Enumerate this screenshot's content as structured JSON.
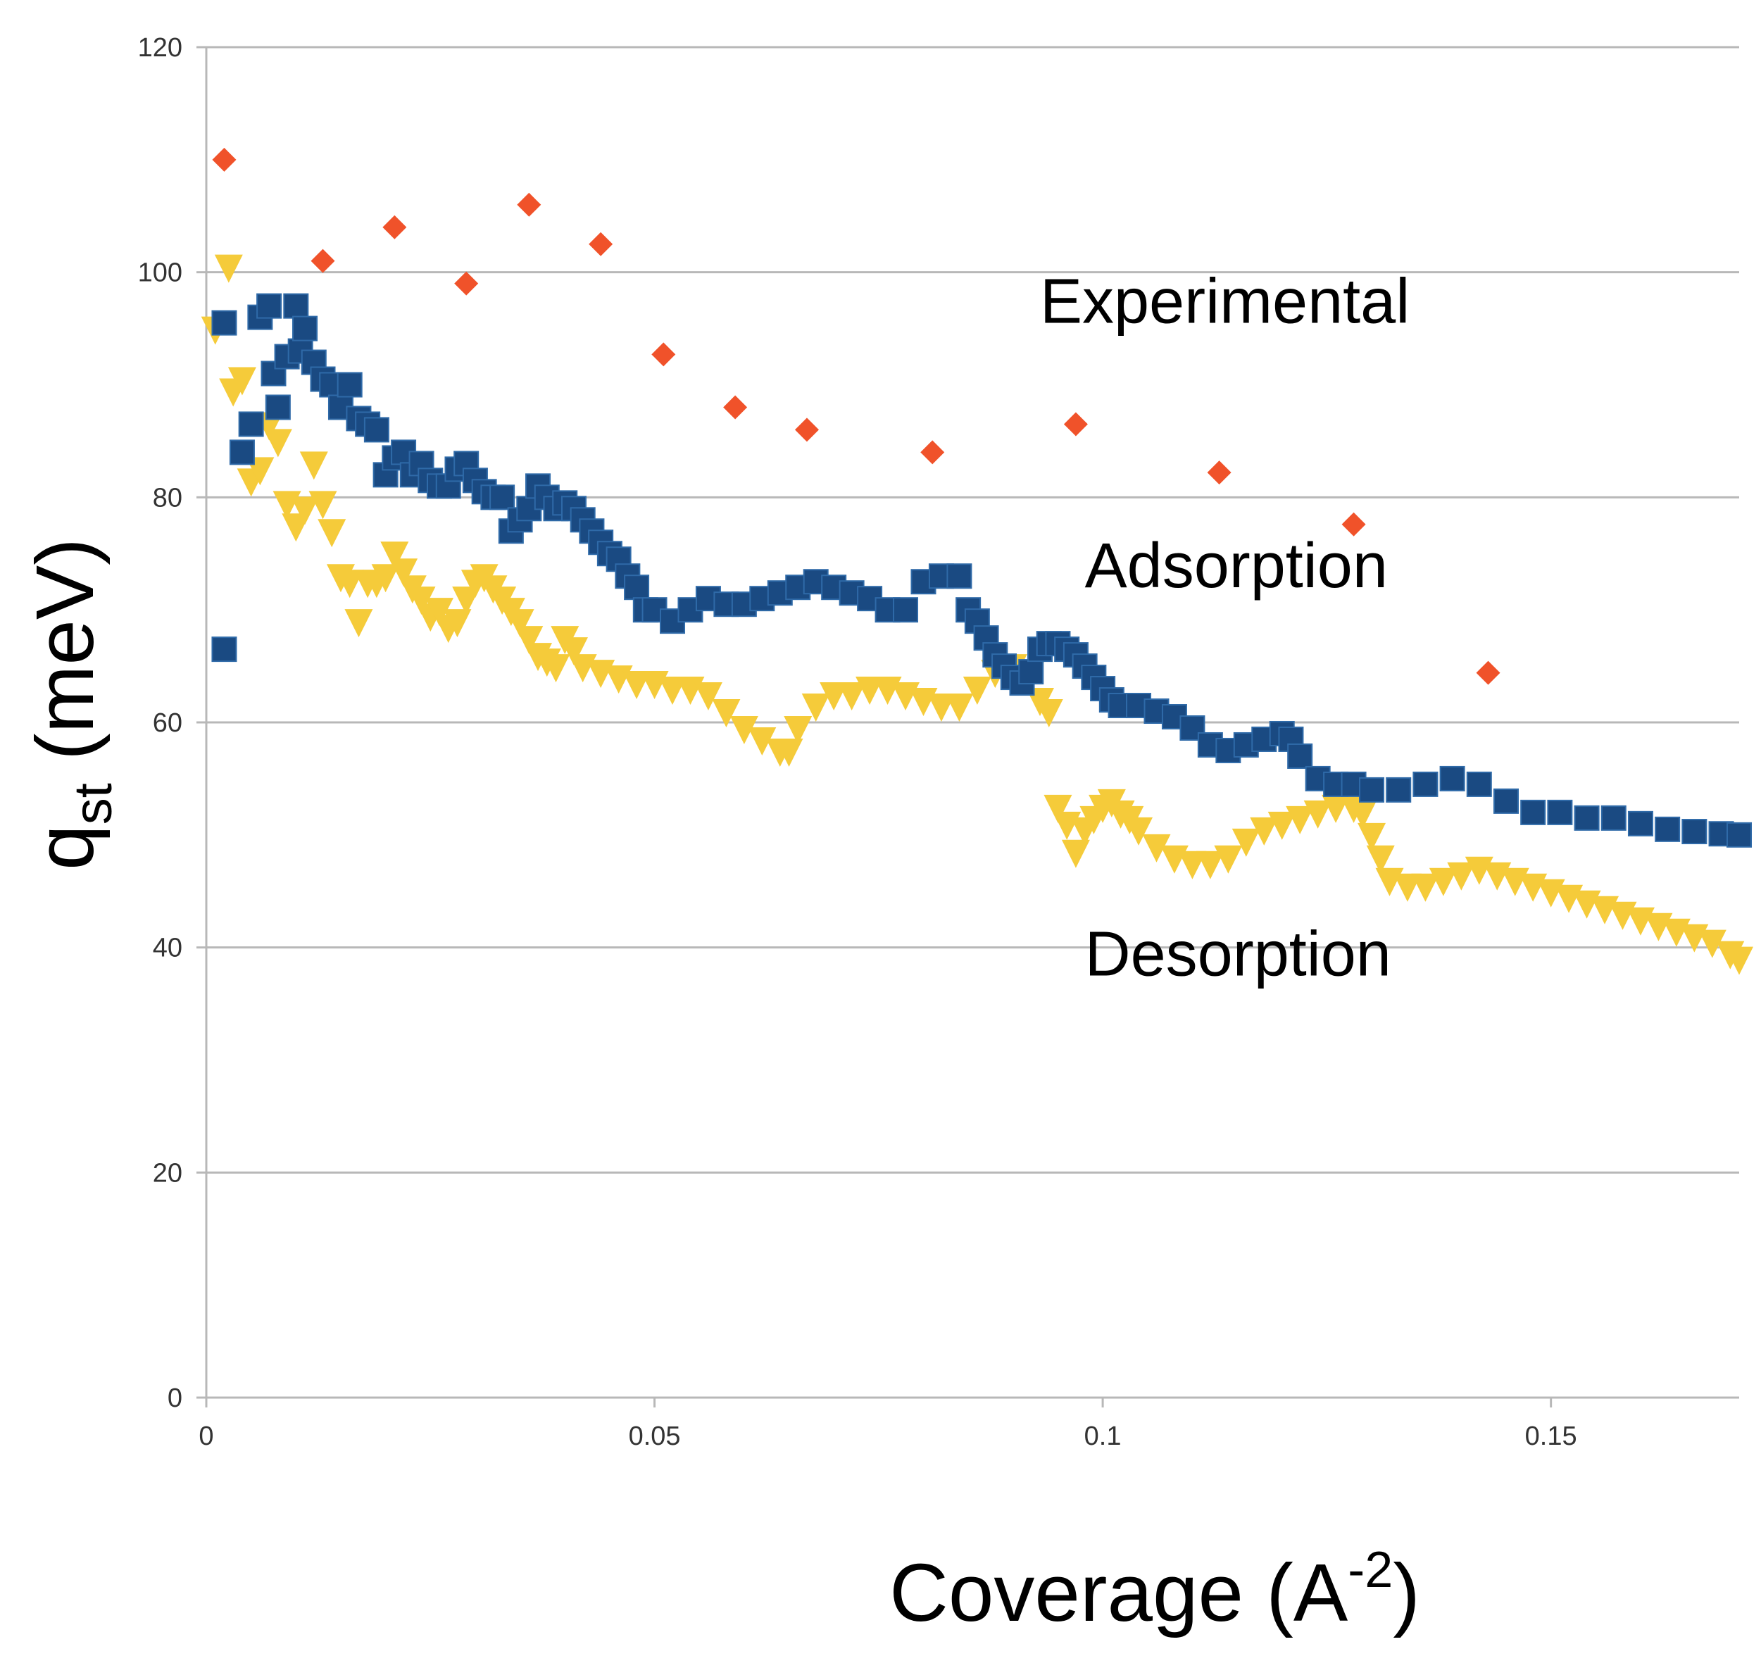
{
  "chart_data": {
    "type": "scatter",
    "title": "",
    "xlabel": "Coverage (A",
    "xlabel_superscript": "-2",
    "xlabel_close": ")",
    "ylabel": "q",
    "ylabel_subscript": "st",
    "ylabel_unit": " (meV)",
    "xlim": [
      0,
      0.171
    ],
    "ylim": [
      0,
      120
    ],
    "x_ticks": [
      {
        "value": 0,
        "label": "0"
      },
      {
        "value": 0.05,
        "label": "0.05"
      },
      {
        "value": 0.1,
        "label": "0.1"
      },
      {
        "value": 0.15,
        "label": "0.15"
      }
    ],
    "y_ticks": [
      {
        "value": 0,
        "label": "0"
      },
      {
        "value": 20,
        "label": "20"
      },
      {
        "value": 40,
        "label": "40"
      },
      {
        "value": 60,
        "label": "60"
      },
      {
        "value": 80,
        "label": "80"
      },
      {
        "value": 100,
        "label": "100"
      },
      {
        "value": 120,
        "label": "120"
      }
    ],
    "grid": "horizontal",
    "series": [
      {
        "name": "Experimental",
        "marker": "diamond",
        "color": "#f0522a",
        "x": [
          0.002,
          0.013,
          0.021,
          0.029,
          0.036,
          0.044,
          0.051,
          0.059,
          0.067,
          0.081,
          0.097,
          0.113,
          0.128,
          0.143
        ],
        "y": [
          110,
          101,
          104,
          99,
          106,
          102.5,
          92.7,
          88,
          86,
          84,
          86.5,
          82.2,
          77.6,
          64.4
        ]
      },
      {
        "name": "Adsorption",
        "marker": "square",
        "color": "#1a4a82",
        "x": [
          0.002,
          0.002,
          0.004,
          0.005,
          0.006,
          0.007,
          0.0075,
          0.008,
          0.009,
          0.01,
          0.0105,
          0.011,
          0.012,
          0.013,
          0.014,
          0.015,
          0.016,
          0.017,
          0.018,
          0.019,
          0.02,
          0.021,
          0.022,
          0.023,
          0.024,
          0.025,
          0.026,
          0.027,
          0.028,
          0.029,
          0.03,
          0.031,
          0.032,
          0.033,
          0.034,
          0.035,
          0.036,
          0.037,
          0.038,
          0.039,
          0.04,
          0.041,
          0.042,
          0.043,
          0.044,
          0.045,
          0.046,
          0.047,
          0.048,
          0.049,
          0.05,
          0.052,
          0.054,
          0.056,
          0.058,
          0.06,
          0.062,
          0.064,
          0.066,
          0.068,
          0.07,
          0.072,
          0.074,
          0.076,
          0.078,
          0.08,
          0.082,
          0.084,
          0.085,
          0.086,
          0.087,
          0.088,
          0.089,
          0.09,
          0.091,
          0.092,
          0.093,
          0.094,
          0.095,
          0.096,
          0.097,
          0.098,
          0.099,
          0.1,
          0.101,
          0.102,
          0.104,
          0.106,
          0.108,
          0.11,
          0.112,
          0.114,
          0.116,
          0.118,
          0.12,
          0.121,
          0.122,
          0.124,
          0.126,
          0.128,
          0.13,
          0.133,
          0.136,
          0.139,
          0.142,
          0.145,
          0.148,
          0.151,
          0.154,
          0.157,
          0.16,
          0.163,
          0.166,
          0.169,
          0.171
        ],
        "y": [
          66.5,
          95.5,
          84,
          86.5,
          96,
          97,
          91,
          88,
          92.5,
          97,
          93,
          95,
          92,
          90.5,
          90,
          88,
          90,
          87,
          86.5,
          86,
          82,
          83.5,
          84,
          82,
          83,
          81.5,
          81,
          81,
          82.5,
          83,
          81.5,
          80.5,
          80,
          80,
          77,
          78,
          79,
          81,
          80,
          79,
          79.5,
          79,
          78,
          77,
          76,
          75,
          74.5,
          73,
          72,
          70,
          70,
          69,
          70,
          71,
          70.5,
          70.5,
          71,
          71.5,
          72,
          72.5,
          72,
          71.5,
          71,
          70,
          70,
          72.5,
          73,
          73,
          70,
          69,
          67.5,
          66,
          65,
          64,
          63.5,
          64.5,
          66.5,
          67,
          67,
          66.5,
          66,
          65,
          64,
          63,
          62,
          61.5,
          61.5,
          61,
          60.5,
          59.5,
          58,
          57.5,
          58,
          58.5,
          59,
          58.5,
          57,
          55,
          54.5,
          54.5,
          54,
          54,
          54.5,
          55,
          54.5,
          53,
          52,
          52,
          51.5,
          51.5,
          51,
          50.5,
          50.3,
          50.1,
          50
        ]
      },
      {
        "name": "Desorption",
        "marker": "triangle-down",
        "color": "#f5cb3a",
        "x": [
          0.001,
          0.0025,
          0.003,
          0.004,
          0.005,
          0.006,
          0.007,
          0.008,
          0.009,
          0.01,
          0.011,
          0.012,
          0.013,
          0.014,
          0.015,
          0.016,
          0.017,
          0.018,
          0.019,
          0.02,
          0.021,
          0.022,
          0.023,
          0.024,
          0.025,
          0.026,
          0.027,
          0.028,
          0.029,
          0.03,
          0.031,
          0.032,
          0.033,
          0.034,
          0.035,
          0.036,
          0.037,
          0.038,
          0.039,
          0.04,
          0.041,
          0.042,
          0.044,
          0.046,
          0.048,
          0.05,
          0.052,
          0.054,
          0.056,
          0.058,
          0.06,
          0.062,
          0.064,
          0.065,
          0.066,
          0.068,
          0.07,
          0.072,
          0.074,
          0.076,
          0.078,
          0.08,
          0.082,
          0.084,
          0.086,
          0.088,
          0.09,
          0.092,
          0.093,
          0.094,
          0.095,
          0.096,
          0.097,
          0.098,
          0.099,
          0.1,
          0.101,
          0.102,
          0.103,
          0.104,
          0.106,
          0.108,
          0.11,
          0.112,
          0.114,
          0.116,
          0.118,
          0.12,
          0.122,
          0.124,
          0.126,
          0.128,
          0.129,
          0.13,
          0.131,
          0.132,
          0.134,
          0.136,
          0.138,
          0.14,
          0.142,
          0.144,
          0.146,
          0.148,
          0.15,
          0.152,
          0.154,
          0.156,
          0.158,
          0.16,
          0.162,
          0.164,
          0.166,
          0.168,
          0.17,
          0.171
        ],
        "y": [
          95,
          100.5,
          89.5,
          90.5,
          81.5,
          82.5,
          86.5,
          85,
          79.5,
          77.5,
          79,
          83,
          79.5,
          77,
          73,
          72.5,
          69,
          72.5,
          72.5,
          73,
          75,
          73.5,
          72,
          71,
          69.5,
          70,
          68.5,
          69,
          71,
          72.5,
          73,
          72,
          71,
          70,
          69,
          67.5,
          66,
          65.5,
          65,
          67.5,
          66.5,
          65,
          64.5,
          64,
          63.5,
          63.5,
          63,
          63,
          62.5,
          61,
          59.5,
          58.5,
          57.5,
          57.5,
          59.5,
          61.5,
          62.5,
          62.5,
          63,
          63,
          62.5,
          62,
          61.5,
          61.5,
          63,
          64.5,
          65,
          64.5,
          62,
          61,
          52.5,
          51,
          48.5,
          50.5,
          51.5,
          52.5,
          53,
          52,
          51.5,
          50.5,
          49,
          48,
          47.5,
          47.5,
          48,
          49.5,
          50.5,
          51,
          51.5,
          52,
          52.5,
          52.5,
          52,
          50,
          48,
          46,
          45.5,
          45.5,
          46,
          46.5,
          47,
          46.5,
          46,
          45.5,
          45,
          44.5,
          44,
          43.5,
          43,
          42.5,
          42,
          41.5,
          41,
          40.5,
          39.5,
          39
        ]
      }
    ],
    "annotations": [
      {
        "text": "Experimental",
        "x": 0.093,
        "y": 95.5,
        "series": "Experimental"
      },
      {
        "text": "Adsorption",
        "x": 0.098,
        "y": 72,
        "series": "Adsorption"
      },
      {
        "text": "Desorption",
        "x": 0.098,
        "y": 37.5,
        "series": "Desorption"
      }
    ]
  }
}
